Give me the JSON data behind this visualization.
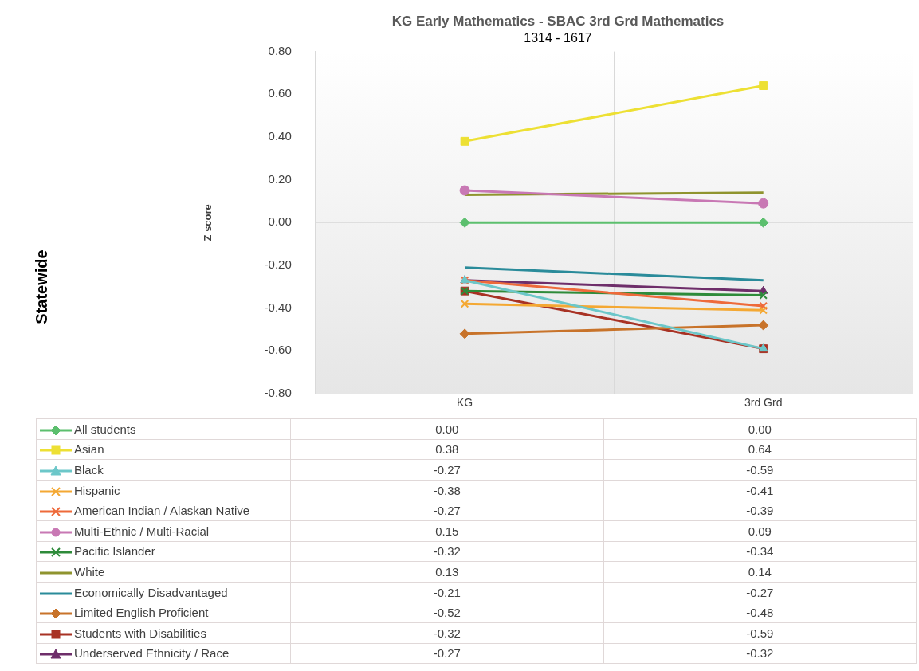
{
  "chart_data": {
    "type": "line",
    "title": "KG Early Mathematics - SBAC 3rd Grd Mathematics",
    "subtitle": "1314 - 1617",
    "ylabel": "Z score",
    "annotations": [
      "Statewide"
    ],
    "categories": [
      "KG",
      "3rd Grd"
    ],
    "ylim": [
      -0.8,
      0.8
    ],
    "yticks": [
      {
        "value": -0.8,
        "label": "-0.80"
      },
      {
        "value": -0.6,
        "label": "-0.60"
      },
      {
        "value": -0.4,
        "label": "-0.40"
      },
      {
        "value": -0.2,
        "label": "-0.20"
      },
      {
        "value": 0,
        "label": "0.00"
      },
      {
        "value": 0.2,
        "label": "0.20"
      },
      {
        "value": 0.4,
        "label": "0.40"
      },
      {
        "value": 0.6,
        "label": "0.60"
      },
      {
        "value": 0.8,
        "label": "0.80"
      }
    ],
    "grid": "x",
    "legend": "bottom",
    "ref_lines": [
      {
        "axis": "y",
        "value": 0,
        "color": "#d9d9d9"
      }
    ],
    "series": [
      {
        "name": "All students",
        "color": "#5cbf6e",
        "marker": "diamond",
        "values": [
          0.0,
          0.0
        ],
        "value_labels": [
          "0.00",
          "0.00"
        ]
      },
      {
        "name": "Asian",
        "color": "#ede034",
        "marker": "square",
        "values": [
          0.38,
          0.64
        ],
        "value_labels": [
          "0.38",
          "0.64"
        ]
      },
      {
        "name": "Black",
        "color": "#6cc7c9",
        "marker": "triangle",
        "values": [
          -0.27,
          -0.59
        ],
        "value_labels": [
          "-0.27",
          "-0.59"
        ]
      },
      {
        "name": "Hispanic",
        "color": "#f4a833",
        "marker": "cross",
        "values": [
          -0.38,
          -0.41
        ],
        "value_labels": [
          "-0.38",
          "-0.41"
        ]
      },
      {
        "name": "American Indian / Alaskan Native",
        "color": "#ee6a3a",
        "marker": "cross",
        "values": [
          -0.27,
          -0.39
        ],
        "value_labels": [
          "-0.27",
          "-0.39"
        ]
      },
      {
        "name": "Multi-Ethnic / Multi-Racial",
        "color": "#c878b4",
        "marker": "circle",
        "values": [
          0.15,
          0.09
        ],
        "value_labels": [
          "0.15",
          "0.09"
        ]
      },
      {
        "name": "Pacific Islander",
        "color": "#2e8b3a",
        "marker": "cross",
        "values": [
          -0.32,
          -0.34
        ],
        "value_labels": [
          "-0.32",
          "-0.34"
        ]
      },
      {
        "name": "White",
        "color": "#8f942e",
        "marker": "none",
        "values": [
          0.13,
          0.14
        ],
        "value_labels": [
          "0.13",
          "0.14"
        ]
      },
      {
        "name": "Economically Disadvantaged",
        "color": "#2a8b9a",
        "marker": "none",
        "values": [
          -0.21,
          -0.27
        ],
        "value_labels": [
          "-0.21",
          "-0.27"
        ]
      },
      {
        "name": "Limited English Proficient",
        "color": "#c8732a",
        "marker": "diamond",
        "values": [
          -0.52,
          -0.48
        ],
        "value_labels": [
          "-0.52",
          "-0.48"
        ]
      },
      {
        "name": "Students with Disabilities",
        "color": "#a83224",
        "marker": "square",
        "values": [
          -0.32,
          -0.59
        ],
        "value_labels": [
          "-0.32",
          "-0.59"
        ]
      },
      {
        "name": "Underserved Ethnicity / Race",
        "color": "#6e2e6a",
        "marker": "triangle",
        "values": [
          -0.27,
          -0.32
        ],
        "value_labels": [
          "-0.27",
          "-0.32"
        ]
      }
    ]
  }
}
